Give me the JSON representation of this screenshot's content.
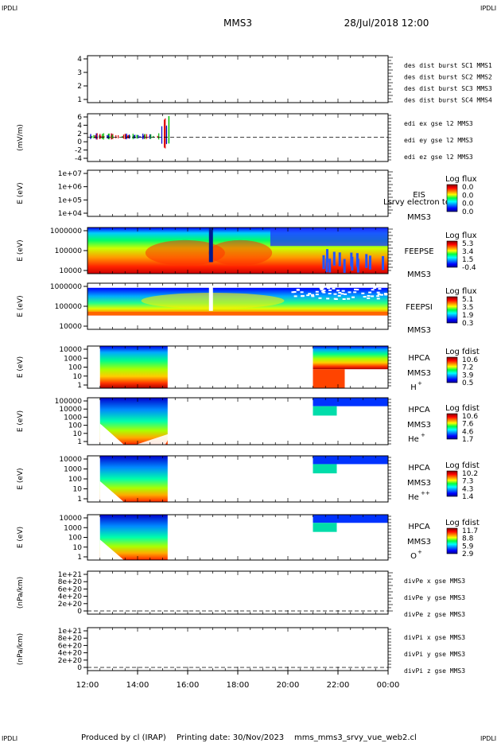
{
  "header": {
    "corner_tl": "IPDLI",
    "corner_tr": "IPDLI",
    "corner_bl": "IPDLI",
    "corner_br": "IPDLI",
    "title": "MMS3",
    "datetime": "28/Jul/2018 12:00"
  },
  "footer": {
    "produced": "Produced by cl (IRAP)",
    "printing": "Printing date: 30/Nov/2023",
    "file": "mms_mms3_srvy_vue_web2.cl"
  },
  "colors": {
    "blue": "#0000cc",
    "magenta": "#cc00cc",
    "red": "#dd0000",
    "green": "#00bb00"
  },
  "chart_data": [
    {
      "type": "line",
      "name": "des_dist_burst",
      "ylabel": "",
      "yticks": [
        "4",
        "3",
        "2",
        "1"
      ],
      "ylim": [
        0.7,
        4.5
      ],
      "legend": [
        {
          "text": "des dist burst SC1 MMS1",
          "color": "#0000cc"
        },
        {
          "text": "des dist burst SC2 MMS2",
          "color": "#cc00cc"
        },
        {
          "text": "des dist burst SC3 MMS3",
          "color": "#dd0000"
        },
        {
          "text": "des dist burst SC4 MMS4",
          "color": "#00bb00"
        }
      ],
      "series": []
    },
    {
      "type": "line",
      "name": "edi_e_gse",
      "ylabel": "(mV/m)",
      "yticks": [
        "6",
        "4",
        "2",
        "0",
        "-2",
        "-4"
      ],
      "ylim": [
        -5,
        6.5
      ],
      "legend": [
        {
          "text": "edi ex gse l2 MMS3",
          "color": "#dd0000"
        },
        {
          "text": "edi ey gse l2 MMS3",
          "color": "#00bb00"
        },
        {
          "text": "edi ez gse l2 MMS3",
          "color": "#0000cc"
        }
      ],
      "zero_line": true,
      "data_range_hours": [
        0.1,
        3.3
      ]
    },
    {
      "type": "heatmap",
      "name": "EIS",
      "ylabel": "E (eV)",
      "yticks": [
        "1e+07",
        "1e+06",
        "1e+05",
        "1e+04"
      ],
      "label": "EIS",
      "sc": "MMS3",
      "extra": "Lsrvy electron to",
      "cbar_title": "Log flux",
      "cbar_ticks": [
        "0.0",
        "0.0",
        "0.0",
        "0.0"
      ],
      "empty": true
    },
    {
      "type": "heatmap",
      "name": "FEEPSE",
      "ylabel": "E (eV)",
      "yticks": [
        "1000000",
        "100000",
        "10000"
      ],
      "label": "FEEPSE",
      "sc": "MMS3",
      "cbar_title": "Log flux",
      "cbar_ticks": [
        "5.3",
        "3.4",
        "1.5",
        "-0.4"
      ]
    },
    {
      "type": "heatmap",
      "name": "FEEPSI",
      "ylabel": "E (eV)",
      "yticks": [
        "1000000",
        "100000",
        "10000"
      ],
      "label": "FEEPSI",
      "sc": "MMS3",
      "cbar_title": "Log flux",
      "cbar_ticks": [
        "5.1",
        "3.5",
        "1.9",
        "0.3"
      ]
    },
    {
      "type": "heatmap",
      "name": "HPCA_H",
      "ylabel": "E (eV)",
      "yticks": [
        "10000",
        "1000",
        "100",
        "10",
        "1"
      ],
      "label": "HPCA",
      "sc": "MMS3",
      "species": "H",
      "charge": "+",
      "cbar_title": "Log fdist",
      "cbar_ticks": [
        "10.6",
        "7.2",
        "3.9",
        "0.5"
      ],
      "blocks_hours": [
        [
          0.5,
          3.2
        ],
        [
          9.0,
          12.0
        ]
      ]
    },
    {
      "type": "heatmap",
      "name": "HPCA_He",
      "ylabel": "E (eV)",
      "yticks": [
        "100000",
        "10000",
        "1000",
        "100",
        "10",
        "1"
      ],
      "label": "HPCA",
      "sc": "MMS3",
      "species": "He",
      "charge": "+",
      "cbar_title": "Log fdist",
      "cbar_ticks": [
        "10.6",
        "7.6",
        "4.6",
        "1.7"
      ],
      "blocks_hours": [
        [
          0.5,
          3.2
        ],
        [
          9.0,
          12.0
        ]
      ]
    },
    {
      "type": "heatmap",
      "name": "HPCA_He2",
      "ylabel": "E (eV)",
      "yticks": [
        "10000",
        "1000",
        "100",
        "10",
        "1"
      ],
      "label": "HPCA",
      "sc": "MMS3",
      "species": "He",
      "charge": "++",
      "cbar_title": "Log fdist",
      "cbar_ticks": [
        "10.2",
        "7.3",
        "4.3",
        "1.4"
      ],
      "blocks_hours": [
        [
          0.5,
          3.2
        ],
        [
          9.0,
          12.0
        ]
      ]
    },
    {
      "type": "heatmap",
      "name": "HPCA_O",
      "ylabel": "E (eV)",
      "yticks": [
        "10000",
        "1000",
        "100",
        "10",
        "1"
      ],
      "label": "HPCA",
      "sc": "MMS3",
      "species": "O",
      "charge": "+",
      "cbar_title": "Log fdist",
      "cbar_ticks": [
        "11.7",
        "8.8",
        "5.9",
        "2.9"
      ],
      "blocks_hours": [
        [
          0.5,
          3.2
        ],
        [
          9.0,
          12.0
        ]
      ]
    },
    {
      "type": "line",
      "name": "divPe",
      "ylabel": "(nPa/km)",
      "yticks": [
        "1e+21",
        "8e+20",
        "6e+20",
        "4e+20",
        "2e+20",
        "0"
      ],
      "ylim": [
        -1e+20,
        1.1e+21
      ],
      "legend": [
        {
          "text": "divPe x gse MMS3",
          "color": "#dd0000"
        },
        {
          "text": "divPe y gse MMS3",
          "color": "#00bb00"
        },
        {
          "text": "divPe z gse MMS3",
          "color": "#0000cc"
        }
      ],
      "zero_line": true
    },
    {
      "type": "line",
      "name": "divPi",
      "ylabel": "(nPa/km)",
      "yticks": [
        "1e+21",
        "8e+20",
        "6e+20",
        "4e+20",
        "2e+20",
        "0"
      ],
      "ylim": [
        -1e+20,
        1.1e+21
      ],
      "legend": [
        {
          "text": "divPi x gse MMS3",
          "color": "#dd0000"
        },
        {
          "text": "divPi y gse MMS3",
          "color": "#00bb00"
        },
        {
          "text": "divPi z gse MMS3",
          "color": "#0000cc"
        }
      ],
      "zero_line": true
    }
  ],
  "xaxis": {
    "ticks": [
      "12:00",
      "14:00",
      "16:00",
      "18:00",
      "20:00",
      "22:00",
      "00:00"
    ],
    "range_hours": [
      0,
      12
    ]
  }
}
